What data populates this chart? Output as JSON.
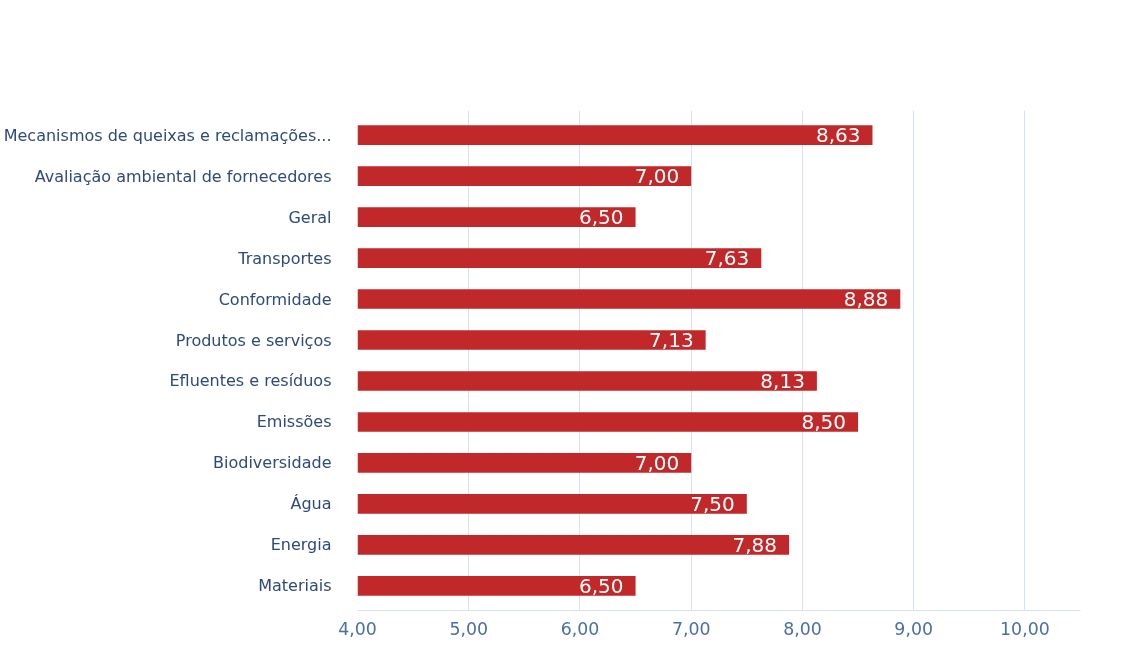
{
  "chart_data": {
    "type": "bar",
    "orientation": "horizontal",
    "categories": [
      "Mecanismos de queixas e reclamações...",
      "Avaliação ambiental de fornecedores",
      "Geral",
      "Transportes",
      "Conformidade",
      "Produtos e serviços",
      "Efluentes e resíduos",
      "Emissões",
      "Biodiversidade",
      "Água",
      "Energia",
      "Materiais"
    ],
    "values": [
      8.63,
      7.0,
      6.5,
      7.63,
      8.88,
      7.13,
      8.13,
      8.5,
      7.0,
      7.5,
      7.88,
      6.5
    ],
    "value_labels": [
      "8,63",
      "7,00",
      "6,50",
      "7,63",
      "8,88",
      "7,13",
      "8,13",
      "8,50",
      "7,00",
      "7,50",
      "7,88",
      "6,50"
    ],
    "color": "#c0282a",
    "xlim": [
      4,
      10.5
    ],
    "xticks": [
      {
        "value": 4,
        "label": "4,00"
      },
      {
        "value": 5,
        "label": "5,00"
      },
      {
        "value": 6,
        "label": "6,00"
      },
      {
        "value": 7,
        "label": "7,00"
      },
      {
        "value": 8,
        "label": "8,00"
      },
      {
        "value": 9,
        "label": "9,00"
      },
      {
        "value": 10,
        "label": "10,00"
      }
    ],
    "grid": "x"
  }
}
